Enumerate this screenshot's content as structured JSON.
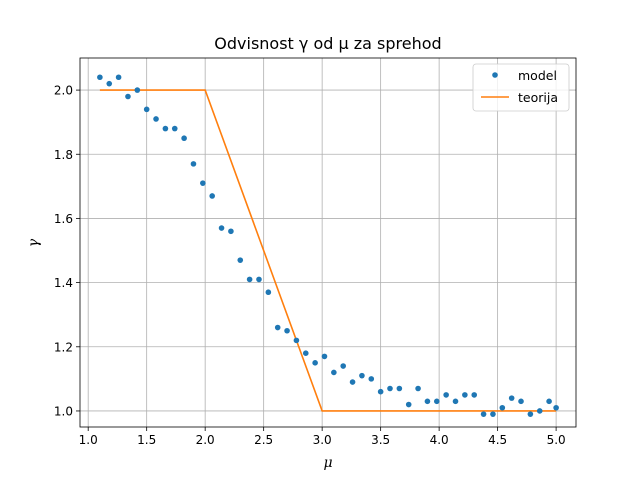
{
  "chart_data": {
    "type": "scatter",
    "title": "Odvisnost γ od μ za sprehod",
    "xlabel": "μ",
    "ylabel": "γ",
    "xlim": [
      0.93,
      5.17
    ],
    "ylim": [
      0.95,
      2.1
    ],
    "xticks": [
      1.0,
      1.5,
      2.0,
      2.5,
      3.0,
      3.5,
      4.0,
      4.5,
      5.0
    ],
    "xtick_labels": [
      "1.0",
      "1.5",
      "2.0",
      "2.5",
      "3.0",
      "3.5",
      "4.0",
      "4.5",
      "5.0"
    ],
    "yticks": [
      1.0,
      1.2,
      1.4,
      1.6,
      1.8,
      2.0
    ],
    "ytick_labels": [
      "1.0",
      "1.2",
      "1.4",
      "1.6",
      "1.8",
      "2.0"
    ],
    "grid": true,
    "legend_position": "top-right",
    "series": [
      {
        "name": "model",
        "style": "points",
        "color": "#1f77b4",
        "x": [
          1.1,
          1.18,
          1.26,
          1.34,
          1.42,
          1.5,
          1.58,
          1.66,
          1.74,
          1.82,
          1.9,
          1.98,
          2.06,
          2.14,
          2.22,
          2.3,
          2.38,
          2.46,
          2.54,
          2.62,
          2.7,
          2.78,
          2.86,
          2.94,
          3.02,
          3.1,
          3.18,
          3.26,
          3.34,
          3.42,
          3.5,
          3.58,
          3.66,
          3.74,
          3.82,
          3.9,
          3.98,
          4.06,
          4.14,
          4.22,
          4.3,
          4.38,
          4.46,
          4.54,
          4.62,
          4.7,
          4.78,
          4.86,
          4.94,
          5.0
        ],
        "y": [
          2.04,
          2.02,
          2.04,
          1.98,
          2.0,
          1.94,
          1.91,
          1.88,
          1.88,
          1.85,
          1.77,
          1.71,
          1.67,
          1.57,
          1.56,
          1.47,
          1.41,
          1.41,
          1.37,
          1.26,
          1.25,
          1.22,
          1.18,
          1.15,
          1.17,
          1.12,
          1.14,
          1.09,
          1.11,
          1.1,
          1.06,
          1.07,
          1.07,
          1.02,
          1.07,
          1.03,
          1.03,
          1.05,
          1.03,
          1.05,
          1.05,
          0.99,
          0.99,
          1.01,
          1.04,
          1.03,
          0.99,
          1.0,
          1.03,
          1.01
        ]
      },
      {
        "name": "teorija",
        "style": "line",
        "color": "#ff7f0e",
        "x": [
          1.1,
          2.0,
          3.0,
          5.0
        ],
        "y": [
          2.0,
          2.0,
          1.0,
          1.0
        ]
      }
    ]
  }
}
